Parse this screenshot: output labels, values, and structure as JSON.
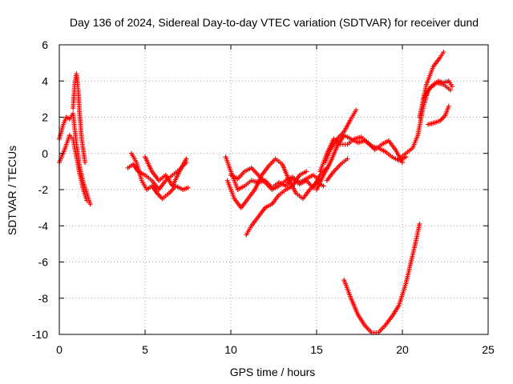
{
  "chart_data": {
    "type": "scatter",
    "title": "Day 136 of 2024, Sidereal Day-to-day VTEC variation (SDTVAR) for receiver dund",
    "xlabel": "GPS time / hours",
    "ylabel": "SDTVAR / TECUs",
    "xlim": [
      0,
      25
    ],
    "ylim": [
      -10,
      6
    ],
    "xticks": [
      0,
      5,
      10,
      15,
      20,
      25
    ],
    "yticks": [
      -10,
      -8,
      -6,
      -4,
      -2,
      0,
      2,
      4,
      6
    ],
    "grid": true,
    "marker": "+",
    "series_color": "#ff0000",
    "series": [
      {
        "x": [
          0.0,
          0.2,
          0.4,
          0.6,
          0.8,
          1.0,
          1.2,
          1.4,
          1.6,
          1.8
        ],
        "y": [
          0.8,
          1.5,
          2.0,
          1.9,
          2.2,
          0.5,
          -0.8,
          -1.6,
          -2.2,
          -2.8
        ]
      },
      {
        "x": [
          0.0,
          0.3,
          0.6,
          0.8,
          1.0,
          1.2,
          1.4,
          1.6
        ],
        "y": [
          -0.5,
          0.2,
          1.0,
          0.8,
          -0.2,
          -1.2,
          -2.0,
          -2.6
        ]
      },
      {
        "x": [
          0.8,
          0.9,
          1.0,
          1.1,
          1.2,
          1.3,
          1.5
        ],
        "y": [
          2.5,
          3.8,
          4.4,
          3.5,
          2.0,
          0.8,
          -0.5
        ]
      },
      {
        "x": [
          4.0,
          4.3,
          4.6,
          5.0,
          5.4,
          5.8,
          6.2,
          6.6,
          7.0,
          7.4
        ],
        "y": [
          -0.8,
          -0.6,
          -1.0,
          -1.2,
          -1.5,
          -2.0,
          -1.5,
          -1.2,
          -0.9,
          -0.5
        ]
      },
      {
        "x": [
          4.2,
          4.5,
          4.8,
          5.1,
          5.4,
          5.7,
          6.0,
          6.4,
          6.8,
          7.2,
          7.5
        ],
        "y": [
          0.0,
          -0.5,
          -1.5,
          -2.0,
          -1.8,
          -2.2,
          -2.5,
          -2.2,
          -1.8,
          -2.0,
          -1.9
        ]
      },
      {
        "x": [
          5.0,
          5.4,
          5.8,
          6.2,
          6.6,
          7.0,
          7.4
        ],
        "y": [
          -0.2,
          -1.0,
          -1.5,
          -1.2,
          -1.8,
          -1.0,
          -0.3
        ]
      },
      {
        "x": [
          9.7,
          10.0,
          10.4,
          10.8,
          11.2,
          11.6,
          12.0,
          12.4,
          12.8,
          13.2,
          13.6,
          14.0,
          14.4,
          14.8,
          15.2,
          15.6
        ],
        "y": [
          -0.2,
          -1.0,
          -2.0,
          -1.8,
          -1.5,
          -1.6,
          -1.5,
          -1.9,
          -1.6,
          -1.8,
          -1.4,
          -1.7,
          -1.5,
          -1.9,
          -1.2,
          -0.8
        ]
      },
      {
        "x": [
          9.8,
          10.2,
          10.6,
          11.0,
          11.4,
          11.8,
          12.2,
          12.6,
          13.0,
          13.4,
          13.8,
          14.2,
          14.6,
          15.0,
          15.4
        ],
        "y": [
          -1.5,
          -2.5,
          -3.0,
          -2.5,
          -2.0,
          -1.2,
          -0.7,
          -0.3,
          -0.6,
          -1.5,
          -2.2,
          -2.5,
          -2.0,
          -1.6,
          -1.8
        ]
      },
      {
        "x": [
          10.9,
          11.2,
          11.6,
          12.0,
          12.4,
          12.8,
          13.2,
          13.6,
          14.0,
          14.4
        ],
        "y": [
          -4.5,
          -4.0,
          -3.5,
          -3.0,
          -2.8,
          -2.3,
          -2.0,
          -1.8,
          -1.2,
          -1.0
        ]
      },
      {
        "x": [
          10.0,
          10.4,
          10.8,
          11.2,
          11.6,
          12.0,
          12.4,
          12.8,
          13.2,
          13.6,
          14.0,
          14.4,
          14.8,
          15.2
        ],
        "y": [
          -1.2,
          -1.4,
          -1.0,
          -0.8,
          -1.2,
          -1.6,
          -2.0,
          -1.8,
          -1.5,
          -1.3,
          -1.6,
          -1.4,
          -1.2,
          -1.5
        ]
      },
      {
        "x": [
          15.0,
          15.4,
          15.8,
          16.2,
          16.6,
          17.0,
          17.4,
          17.8,
          18.2,
          18.6,
          19.0,
          19.4,
          19.8,
          20.2
        ],
        "y": [
          -2.0,
          -1.2,
          -0.5,
          0.4,
          1.0,
          0.8,
          0.6,
          0.7,
          0.4,
          0.3,
          0.1,
          -0.2,
          -0.4,
          -0.2
        ]
      },
      {
        "x": [
          15.2,
          15.6,
          16.0,
          16.4,
          16.8,
          17.2,
          17.6,
          18.0,
          18.4,
          18.8,
          19.2,
          19.6,
          20.0
        ],
        "y": [
          -1.0,
          0.0,
          0.8,
          0.5,
          0.5,
          0.8,
          0.9,
          0.6,
          0.2,
          0.5,
          0.7,
          0.2,
          -0.5
        ]
      },
      {
        "x": [
          15.5,
          15.8,
          16.2,
          16.6,
          17.0,
          17.3
        ],
        "y": [
          -0.5,
          0.2,
          0.8,
          1.2,
          1.9,
          2.4
        ]
      },
      {
        "x": [
          15.6,
          16.0,
          16.4,
          16.8
        ],
        "y": [
          -1.5,
          -1.0,
          -0.6,
          -0.3
        ]
      },
      {
        "x": [
          16.6,
          17.0,
          17.4,
          17.8,
          18.2,
          18.6,
          19.0,
          19.4,
          19.8,
          20.2,
          20.5,
          20.8,
          21.0
        ],
        "y": [
          -7.0,
          -8.0,
          -8.9,
          -9.5,
          -9.9,
          -9.9,
          -9.5,
          -9.0,
          -8.4,
          -7.2,
          -6.0,
          -4.8,
          -3.9
        ]
      },
      {
        "x": [
          19.8,
          20.2,
          20.6,
          20.9,
          21.2,
          21.5,
          21.8,
          22.1,
          22.4,
          22.7,
          22.9
        ],
        "y": [
          -0.3,
          0.0,
          0.3,
          1.0,
          2.5,
          3.5,
          3.8,
          4.0,
          3.9,
          4.0,
          3.7
        ]
      },
      {
        "x": [
          21.0,
          21.4,
          21.8,
          22.2,
          22.4
        ],
        "y": [
          2.0,
          3.8,
          4.8,
          5.3,
          5.6
        ]
      },
      {
        "x": [
          21.5,
          21.9,
          22.2,
          22.5,
          22.7
        ],
        "y": [
          1.6,
          1.7,
          1.8,
          2.1,
          2.6
        ]
      },
      {
        "x": [
          21.2,
          21.6,
          22.0,
          22.4,
          22.8
        ],
        "y": [
          3.0,
          3.6,
          3.9,
          3.8,
          3.5
        ]
      }
    ]
  }
}
